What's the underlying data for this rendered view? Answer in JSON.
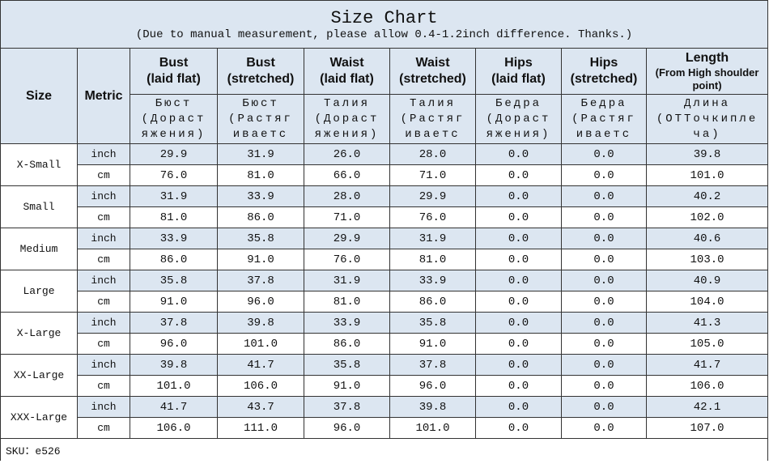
{
  "header": {
    "title": "Size Chart",
    "subtitle": "(Due to manual measurement, please allow 0.4-1.2inch difference. Thanks.)"
  },
  "columns": [
    {
      "name": "Size"
    },
    {
      "name": "Metric"
    },
    {
      "name": "Bust",
      "sub": "(laid flat)",
      "ru": "Бюст\n(Дораст\nяжения)"
    },
    {
      "name": "Bust",
      "sub": "(stretched)",
      "ru": "Бюст\n(Растяг\nиваетс"
    },
    {
      "name": "Waist",
      "sub": "(laid flat)",
      "ru": "Талия\n(Дораст\nяжения)"
    },
    {
      "name": "Waist",
      "sub": "(stretched)",
      "ru": "Талия\n(Растяг\nиваетс"
    },
    {
      "name": "Hips",
      "sub": "(laid flat)",
      "ru": "Бедра\n(Дораст\nяжения)"
    },
    {
      "name": "Hips",
      "sub": "(stretched)",
      "ru": "Бедра\n(Растяг\nиваетс"
    },
    {
      "name": "Length",
      "sub": "(From High shoulder point)",
      "ru": "Длина\n(ОТТочкипле\nча)"
    }
  ],
  "sizes": [
    {
      "name": "X-Small",
      "rows": [
        {
          "metric": "inch",
          "values": [
            "29.9",
            "31.9",
            "26.0",
            "28.0",
            "0.0",
            "0.0",
            "39.8"
          ]
        },
        {
          "metric": "cm",
          "values": [
            "76.0",
            "81.0",
            "66.0",
            "71.0",
            "0.0",
            "0.0",
            "101.0"
          ]
        }
      ]
    },
    {
      "name": "Small",
      "rows": [
        {
          "metric": "inch",
          "values": [
            "31.9",
            "33.9",
            "28.0",
            "29.9",
            "0.0",
            "0.0",
            "40.2"
          ]
        },
        {
          "metric": "cm",
          "values": [
            "81.0",
            "86.0",
            "71.0",
            "76.0",
            "0.0",
            "0.0",
            "102.0"
          ]
        }
      ]
    },
    {
      "name": "Medium",
      "rows": [
        {
          "metric": "inch",
          "values": [
            "33.9",
            "35.8",
            "29.9",
            "31.9",
            "0.0",
            "0.0",
            "40.6"
          ]
        },
        {
          "metric": "cm",
          "values": [
            "86.0",
            "91.0",
            "76.0",
            "81.0",
            "0.0",
            "0.0",
            "103.0"
          ]
        }
      ]
    },
    {
      "name": "Large",
      "rows": [
        {
          "metric": "inch",
          "values": [
            "35.8",
            "37.8",
            "31.9",
            "33.9",
            "0.0",
            "0.0",
            "40.9"
          ]
        },
        {
          "metric": "cm",
          "values": [
            "91.0",
            "96.0",
            "81.0",
            "86.0",
            "0.0",
            "0.0",
            "104.0"
          ]
        }
      ]
    },
    {
      "name": "X-Large",
      "rows": [
        {
          "metric": "inch",
          "values": [
            "37.8",
            "39.8",
            "33.9",
            "35.8",
            "0.0",
            "0.0",
            "41.3"
          ]
        },
        {
          "metric": "cm",
          "values": [
            "96.0",
            "101.0",
            "86.0",
            "91.0",
            "0.0",
            "0.0",
            "105.0"
          ]
        }
      ]
    },
    {
      "name": "XX-Large",
      "rows": [
        {
          "metric": "inch",
          "values": [
            "39.8",
            "41.7",
            "35.8",
            "37.8",
            "0.0",
            "0.0",
            "41.7"
          ]
        },
        {
          "metric": "cm",
          "values": [
            "101.0",
            "106.0",
            "91.0",
            "96.0",
            "0.0",
            "0.0",
            "106.0"
          ]
        }
      ]
    },
    {
      "name": "XXX-Large",
      "rows": [
        {
          "metric": "inch",
          "values": [
            "41.7",
            "43.7",
            "37.8",
            "39.8",
            "0.0",
            "0.0",
            "42.1"
          ]
        },
        {
          "metric": "cm",
          "values": [
            "106.0",
            "111.0",
            "96.0",
            "101.0",
            "0.0",
            "0.0",
            "107.0"
          ]
        }
      ]
    }
  ],
  "footer": {
    "sku": "SKU：e526"
  }
}
